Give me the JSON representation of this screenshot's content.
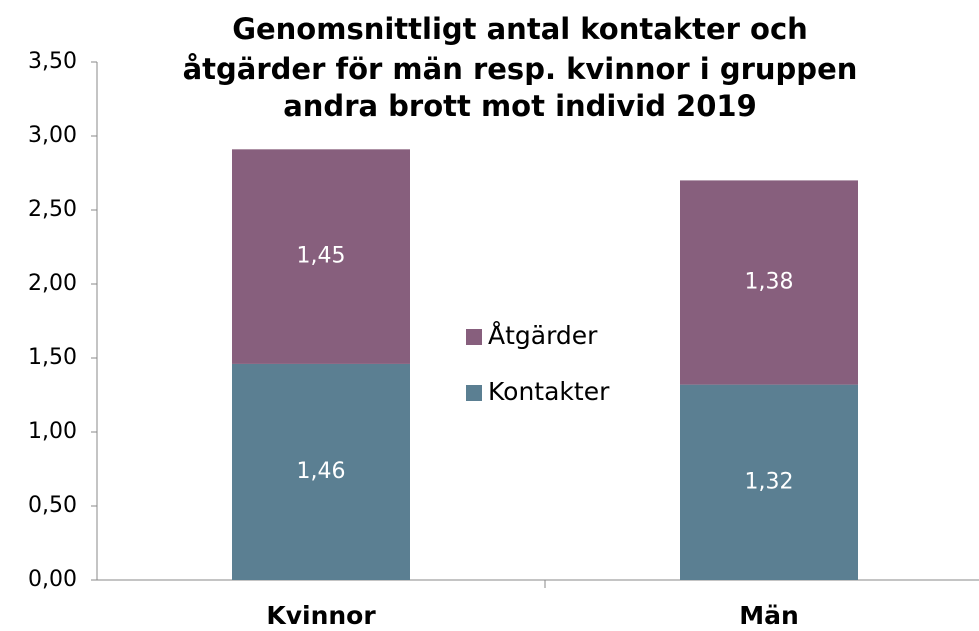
{
  "chart_data": {
    "type": "stacked_bar",
    "title": [
      "Genomsnittligt antal kontakter och",
      "åtgärder för män resp. kvinnor i gruppen",
      "andra brott mot individ 2019"
    ],
    "categories": [
      "Kvinnor",
      "Män"
    ],
    "series": [
      {
        "name": "Kontakter",
        "color": "#5b7f92",
        "values": [
          1.46,
          1.32
        ],
        "value_labels": [
          "1,46",
          "1,32"
        ]
      },
      {
        "name": "Åtgärder",
        "color": "#875f7d",
        "values": [
          1.45,
          1.38
        ],
        "value_labels": [
          "1,45",
          "1,38"
        ]
      }
    ],
    "ylim": [
      0,
      3.5
    ],
    "yticks": [
      {
        "value": 0,
        "label": "0,00"
      },
      {
        "value": 0.5,
        "label": "0,50"
      },
      {
        "value": 1,
        "label": "1,00"
      },
      {
        "value": 1.5,
        "label": "1,50"
      },
      {
        "value": 2,
        "label": "2,00"
      },
      {
        "value": 2.5,
        "label": "2,50"
      },
      {
        "value": 3,
        "label": "3,00"
      },
      {
        "value": 3.5,
        "label": "3,50"
      }
    ],
    "grid": false,
    "legend": "center"
  }
}
